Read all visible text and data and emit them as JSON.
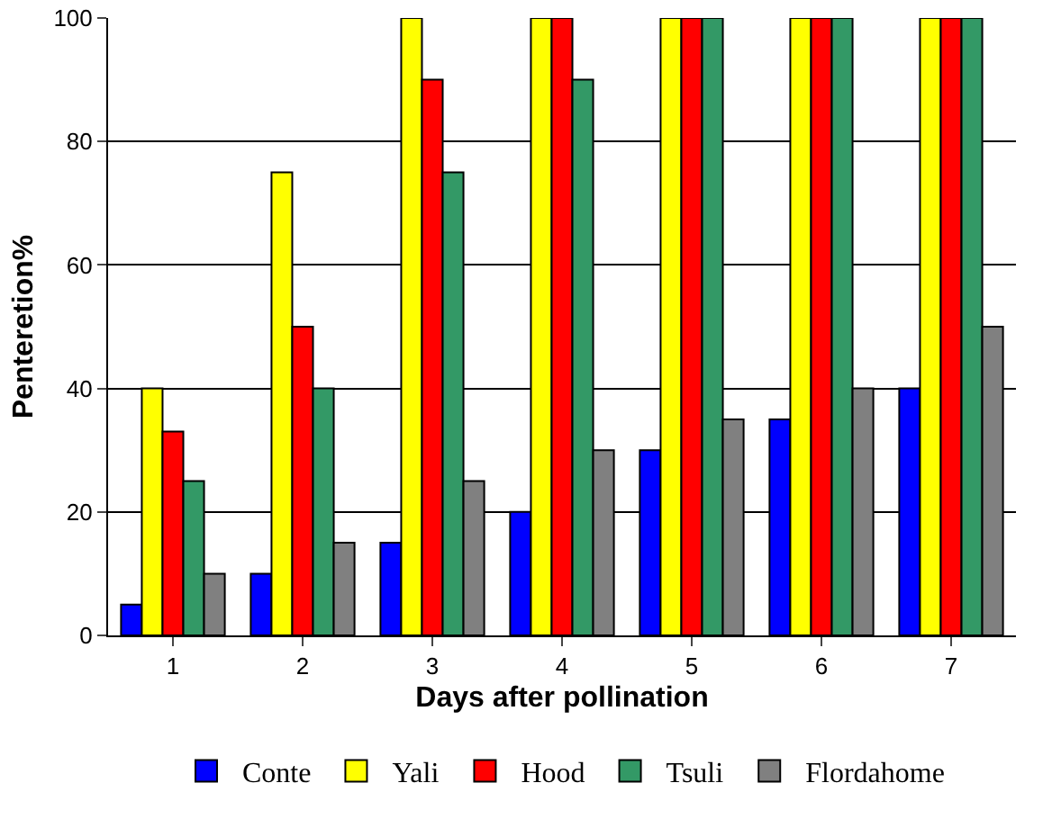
{
  "chart_data": {
    "type": "bar",
    "xlabel": "Days after pollination",
    "ylabel": "Penteretion%",
    "categories": [
      "1",
      "2",
      "3",
      "4",
      "5",
      "6",
      "7"
    ],
    "series": [
      {
        "name": "Conte",
        "color": "#0000ff",
        "values": [
          5,
          10,
          15,
          20,
          30,
          35,
          40
        ]
      },
      {
        "name": "Yali",
        "color": "#ffff00",
        "values": [
          40,
          75,
          100,
          100,
          100,
          100,
          100
        ]
      },
      {
        "name": "Hood",
        "color": "#ff0000",
        "values": [
          33,
          50,
          90,
          100,
          100,
          100,
          100
        ]
      },
      {
        "name": "Tsuli",
        "color": "#339966",
        "values": [
          25,
          40,
          75,
          90,
          100,
          100,
          100
        ]
      },
      {
        "name": "Flordahome",
        "color": "#808080",
        "values": [
          10,
          15,
          25,
          30,
          35,
          40,
          50
        ]
      }
    ],
    "ylim": [
      0,
      100
    ],
    "yticks": [
      0,
      20,
      40,
      60,
      80,
      100
    ],
    "grid": "y",
    "legend": "bottom"
  }
}
